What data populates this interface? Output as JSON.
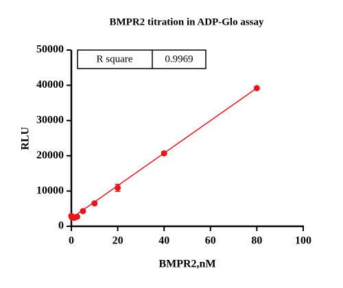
{
  "chart_data": {
    "type": "scatter",
    "title": "BMPR2 titration in  ADP-Glo assay",
    "x_label": "BMPR2,nM",
    "y_label": "RLU",
    "xlim": [
      0,
      100
    ],
    "xticks": [
      0,
      20,
      40,
      60,
      80,
      100
    ],
    "ylim": [
      0,
      50000
    ],
    "yticks": [
      0,
      10000,
      20000,
      30000,
      40000,
      50000
    ],
    "series": [
      {
        "color": "#e8141c",
        "x": [
          0,
          0.3125,
          0.625,
          1.25,
          2.5,
          5,
          10,
          20,
          40,
          80
        ],
        "values": [
          2900,
          2500,
          2700,
          2400,
          2700,
          4300,
          6500,
          10900,
          20700,
          39200
        ],
        "errors": [
          500,
          300,
          300,
          200,
          200,
          300,
          400,
          1000,
          400,
          300
        ]
      }
    ],
    "fit_line": {
      "color": "#e8141c",
      "x": [
        0,
        80
      ],
      "values": [
        2300,
        39200
      ]
    },
    "stats_table": {
      "label": "R square",
      "value": 0.9969
    }
  }
}
